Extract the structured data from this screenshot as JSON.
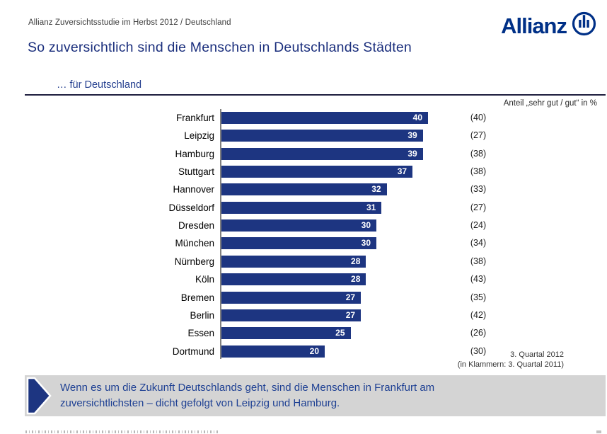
{
  "header": {
    "study_line": "Allianz Zuversichtsstudie im Herbst 2012 / Deutschland",
    "logo_text": "Allianz"
  },
  "title": "So zuversichtlich sind die Menschen in Deutschlands Städten",
  "subtitle": "… für Deutschland",
  "chart_data": {
    "type": "bar",
    "orientation": "horizontal",
    "title": "… für Deutschland",
    "unit_note": "Anteil „sehr gut / gut“ in %",
    "categories": [
      "Frankfurt",
      "Leipzig",
      "Hamburg",
      "Stuttgart",
      "Hannover",
      "Düsseldorf",
      "Dresden",
      "München",
      "Nürnberg",
      "Köln",
      "Bremen",
      "Berlin",
      "Essen",
      "Dortmund"
    ],
    "values": [
      40,
      39,
      39,
      37,
      32,
      31,
      30,
      30,
      28,
      28,
      27,
      27,
      25,
      20
    ],
    "values_previous_year_in_parens": [
      40,
      27,
      38,
      38,
      33,
      27,
      24,
      34,
      38,
      43,
      35,
      42,
      26,
      30
    ],
    "period_note": "3. Quartal 2012",
    "parens_note": "(in Klammern: 3. Quartal 2011)",
    "xlim": [
      0,
      40
    ],
    "grid": false,
    "legend": "none",
    "value_labels": "inside-end",
    "bar_color": "#1d3581",
    "axis_color": "#7f7f7f"
  },
  "callout": {
    "lines": [
      "Wenn es um die Zukunft Deutschlands geht, sind die Menschen in Frankfurt am",
      "zuversichtlichsten – dicht gefolgt von Leipzig und Hamburg."
    ]
  },
  "colors": {
    "brand_blue": "#003087",
    "title_blue": "#1b2f7d",
    "bar_blue": "#1d3581",
    "callout_bg": "#d4d4d4",
    "callout_text": "#1e4093"
  }
}
